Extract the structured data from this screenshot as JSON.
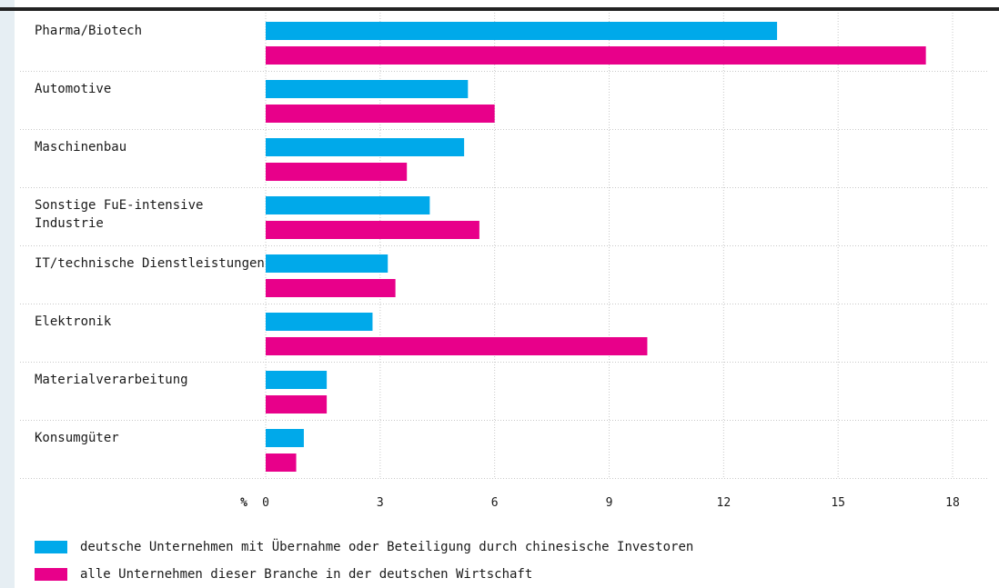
{
  "chart_data": {
    "type": "bar",
    "orientation": "horizontal",
    "categories": [
      [
        "Pharma/Biotech"
      ],
      [
        "Automotive"
      ],
      [
        "Maschinenbau"
      ],
      [
        "Sonstige FuE-intensive",
        "Industrie"
      ],
      [
        "IT/technische Dienstleistungen"
      ],
      [
        "Elektronik"
      ],
      [
        "Materialverarbeitung"
      ],
      [
        "Konsumgüter"
      ]
    ],
    "series": [
      {
        "name": "deutsche Unternehmen mit Übernahme oder Beteiligung durch chinesische Investoren",
        "color": "#00a9ea",
        "values": [
          13.4,
          5.3,
          5.2,
          4.3,
          3.2,
          2.8,
          1.6,
          1.0
        ]
      },
      {
        "name": "alle Unternehmen dieser Branche in der deutschen Wirtschaft",
        "color": "#e8008a",
        "values": [
          17.3,
          6.0,
          3.7,
          5.6,
          3.4,
          10.0,
          1.6,
          0.8
        ]
      }
    ],
    "xlim": [
      0,
      18
    ],
    "xticks": [
      0,
      3,
      6,
      9,
      12,
      15,
      18
    ],
    "xlabel": "%",
    "grid": true,
    "legend_position": "bottom-left"
  }
}
